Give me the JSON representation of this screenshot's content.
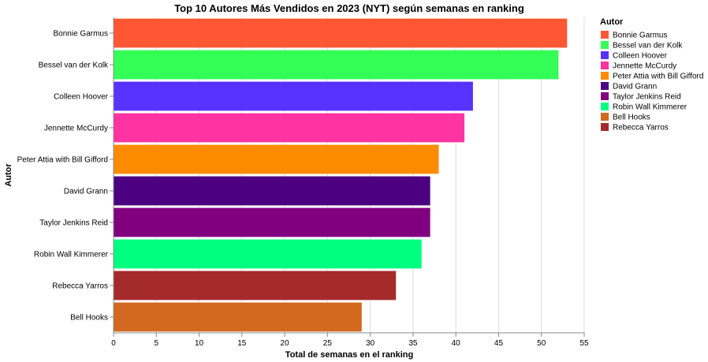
{
  "chart_data": {
    "type": "bar",
    "orientation": "horizontal",
    "title": "Top 10 Autores Más Vendidos en 2023 (NYT) según semanas en ranking",
    "xlabel": "Total de semanas en el ranking",
    "ylabel": "Autor",
    "xlim": [
      0,
      55
    ],
    "xticks": [
      0,
      5,
      10,
      15,
      20,
      25,
      30,
      35,
      40,
      45,
      50,
      55
    ],
    "grid": true,
    "legend_title": "Autor",
    "legend_position": "right",
    "categories": [
      "Bonnie Garmus",
      "Bessel van der Kolk",
      "Colleen Hoover",
      "Jennette McCurdy",
      "Peter Attia with Bill Gifford",
      "David Grann",
      "Taylor Jenkins Reid",
      "Robin Wall Kimmerer",
      "Rebecca Yarros",
      "Bell Hooks"
    ],
    "values": [
      53,
      52,
      42,
      41,
      38,
      37,
      37,
      36,
      33,
      29
    ],
    "colors": {
      "Bonnie Garmus": "#ff5733",
      "Bessel van der Kolk": "#33ff57",
      "Colleen Hoover": "#5733ff",
      "Jennette McCurdy": "#ff33a1",
      "Peter Attia with Bill Gifford": "#ff8c00",
      "David Grann": "#4b0082",
      "Taylor Jenkins Reid": "#800080",
      "Robin Wall Kimmerer": "#00ff7f",
      "Bell Hooks": "#d2691e",
      "Rebecca Yarros": "#a52a2a"
    },
    "legend_order": [
      "Bonnie Garmus",
      "Bessel van der Kolk",
      "Colleen Hoover",
      "Jennette McCurdy",
      "Peter Attia with Bill Gifford",
      "David Grann",
      "Taylor Jenkins Reid",
      "Robin Wall Kimmerer",
      "Bell Hooks",
      "Rebecca Yarros"
    ]
  }
}
